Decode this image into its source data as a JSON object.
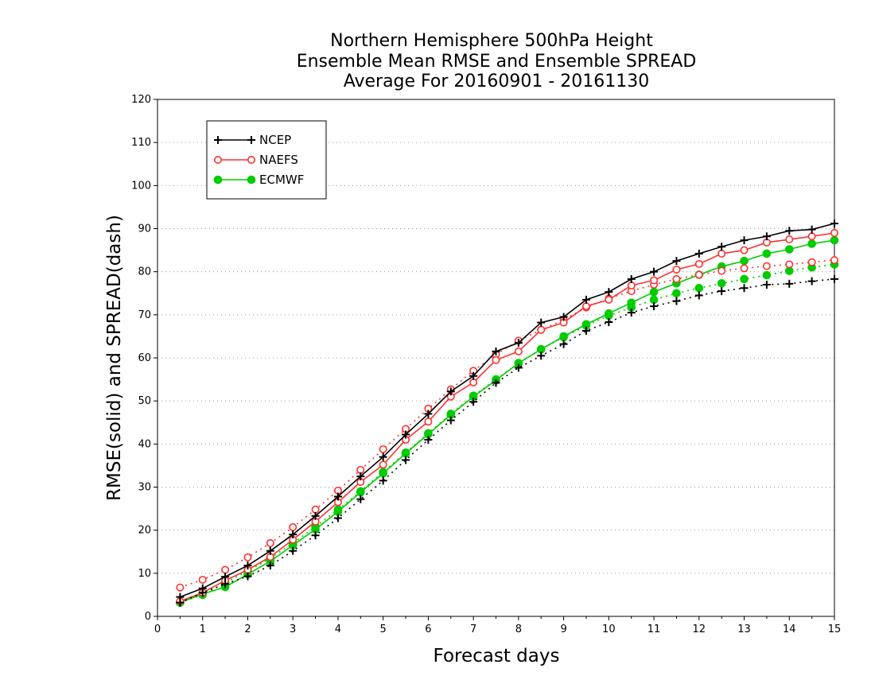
{
  "chart_data": {
    "type": "line",
    "title_lines": [
      "Northern Hemisphere 500hPa Height",
      "Ensemble Mean RMSE and Ensemble SPREAD",
      "Average For 20160901 - 20161130"
    ],
    "xlabel": "Forecast days",
    "ylabel": "RMSE(solid) and SPREAD(dash)",
    "xlim": [
      0,
      15
    ],
    "ylim": [
      0,
      120
    ],
    "x_ticks": [
      0,
      1,
      2,
      3,
      4,
      5,
      6,
      7,
      8,
      9,
      10,
      11,
      12,
      13,
      14,
      15
    ],
    "y_ticks": [
      0,
      10,
      20,
      30,
      40,
      50,
      60,
      70,
      80,
      90,
      100,
      110,
      120
    ],
    "grid": "horizontal dotted",
    "legend_position": "top-left",
    "x": [
      0.5,
      1,
      1.5,
      2,
      2.5,
      3,
      3.5,
      4,
      4.5,
      5,
      5.5,
      6,
      6.5,
      7,
      7.5,
      8,
      8.5,
      9,
      9.5,
      10,
      10.5,
      11,
      11.5,
      12,
      12.5,
      13,
      13.5,
      14,
      14.5,
      15
    ],
    "series": [
      {
        "name": "NCEP",
        "color": "#000000",
        "marker": "plus",
        "rmse": [
          4.5,
          6.5,
          9.2,
          11.8,
          15.2,
          19.0,
          23.3,
          27.8,
          32.5,
          37.0,
          42.2,
          47.0,
          52.2,
          55.8,
          61.5,
          63.5,
          68.2,
          69.5,
          73.5,
          75.3,
          78.3,
          80.0,
          82.5,
          84.2,
          85.8,
          87.3,
          88.2,
          89.5,
          89.8,
          91.2
        ],
        "spread": [
          3.2,
          5.5,
          7.5,
          9.3,
          11.8,
          15.2,
          18.8,
          22.8,
          27.2,
          31.5,
          36.3,
          41.0,
          45.5,
          49.8,
          54.2,
          57.7,
          60.5,
          63.2,
          66.3,
          68.3,
          70.5,
          72.0,
          73.2,
          74.5,
          75.5,
          76.2,
          77.0,
          77.2,
          77.8,
          78.3
        ]
      },
      {
        "name": "NAEFS",
        "color": "#ff3030",
        "marker": "open-circle",
        "rmse": [
          3.5,
          5.5,
          8.3,
          10.8,
          13.8,
          17.8,
          22.0,
          26.5,
          31.2,
          35.2,
          41.0,
          45.2,
          51.0,
          54.3,
          59.5,
          61.5,
          66.5,
          68.2,
          72.0,
          73.5,
          76.8,
          78.0,
          80.5,
          81.8,
          84.2,
          85.0,
          86.8,
          87.5,
          88.2,
          89.0
        ],
        "spread": [
          6.7,
          8.5,
          10.8,
          13.7,
          17.0,
          20.7,
          24.8,
          29.2,
          34.0,
          38.8,
          43.5,
          48.2,
          52.7,
          57.0,
          60.8,
          64.0,
          66.5,
          68.8,
          71.7,
          73.8,
          75.5,
          77.0,
          78.3,
          79.3,
          80.2,
          80.8,
          81.3,
          81.7,
          82.2,
          82.7
        ]
      },
      {
        "name": "ECMWF",
        "color": "#00cc00",
        "marker": "filled-circle",
        "rmse": [
          3.2,
          5.2,
          6.8,
          9.8,
          12.8,
          16.5,
          20.2,
          24.3,
          28.8,
          33.2,
          37.8,
          42.3,
          46.8,
          51.0,
          54.8,
          58.8,
          62.0,
          65.0,
          67.8,
          70.3,
          72.8,
          75.3,
          77.3,
          79.3,
          81.2,
          82.5,
          84.2,
          85.2,
          86.5,
          87.3
        ],
        "spread": [
          3.2,
          5.0,
          7.8,
          10.5,
          13.5,
          17.0,
          20.8,
          24.8,
          29.0,
          33.5,
          38.0,
          42.5,
          47.0,
          51.2,
          55.0,
          58.7,
          62.0,
          64.8,
          67.5,
          69.8,
          71.7,
          73.5,
          75.0,
          76.2,
          77.3,
          78.3,
          79.2,
          80.2,
          81.0,
          81.7
        ]
      }
    ]
  }
}
